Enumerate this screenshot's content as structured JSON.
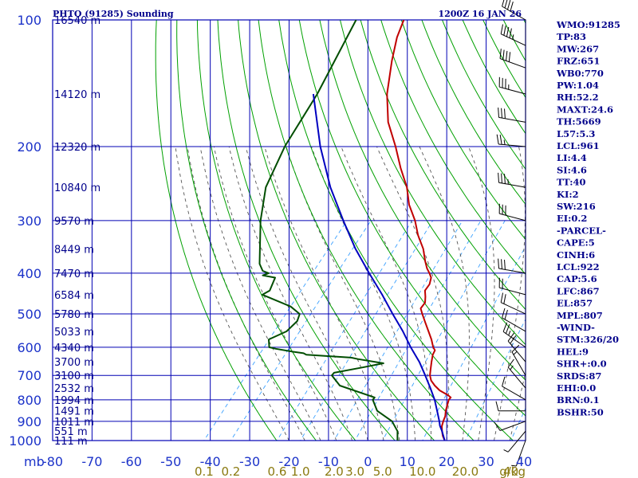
{
  "header": {
    "station": "PHTO (91285) Sounding",
    "time": "1200Z 16 JAN 26"
  },
  "indices": [
    "WMO:91285",
    "TP:83",
    "MW:267",
    "FRZ:651",
    "WB0:770",
    "PW:1.04",
    "RH:52.2",
    "MAXT:24.6",
    "TH:5669",
    "L57:5.3",
    "LCL:961",
    "LI:4.4",
    "SI:4.6",
    "TT:40",
    "KI:2",
    "SW:216",
    "EI:0.2",
    "-PARCEL-",
    "CAPE:5",
    "CINH:6",
    "LCL:922",
    "CAP:5.6",
    "LFC:867",
    "EL:857",
    "MPL:807",
    "-WIND-",
    "STM:326/20",
    "HEL:9",
    "SHR+:0.0",
    "SRDS:87",
    "EHI:0.0",
    "BRN:0.1",
    "BSHR:50"
  ],
  "colors": {
    "grid": "#0000b4",
    "dry_adiabat": "#00a000",
    "moist_adiabat": "#555555",
    "mixing_ratio": "#3aa0ff",
    "temperature": "#c00000",
    "dewpoint": "#004d00",
    "parcel": "#0000c0",
    "text": "#00008b",
    "mixing_label": "#8a7a10"
  },
  "chart_data": {
    "type": "line",
    "y_unit_label": "mb",
    "pressure_levels": [
      100,
      200,
      300,
      400,
      500,
      600,
      700,
      800,
      900,
      1000
    ],
    "pressure_tick_labels": [
      "100",
      "200",
      "300",
      "400",
      "500",
      "600",
      "700",
      "800",
      "900",
      "1000"
    ],
    "temperature_ticks": [
      -80,
      -70,
      -60,
      -50,
      -40,
      -30,
      -20,
      -10,
      0,
      10,
      20,
      30,
      40
    ],
    "temperature_tick_labels": [
      "-80",
      "-70",
      "-60",
      "-50",
      "-40",
      "-30",
      "-20",
      "-10",
      "0",
      "10",
      "20",
      "30",
      "40"
    ],
    "xlim": [
      -80,
      40
    ],
    "ylim": [
      1000,
      100
    ],
    "skew_c_per_decade": 90,
    "heights": [
      {
        "p": 100,
        "label": "16540 m"
      },
      {
        "p": 150,
        "label": "14120 m"
      },
      {
        "p": 200,
        "label": "12320 m"
      },
      {
        "p": 250,
        "label": "10840 m"
      },
      {
        "p": 300,
        "label": "9570 m"
      },
      {
        "p": 350,
        "label": "8449 m"
      },
      {
        "p": 400,
        "label": "7470 m"
      },
      {
        "p": 450,
        "label": "6584 m"
      },
      {
        "p": 500,
        "label": "5780 m"
      },
      {
        "p": 550,
        "label": "5033 m"
      },
      {
        "p": 600,
        "label": "4340 m"
      },
      {
        "p": 650,
        "label": "3700 m"
      },
      {
        "p": 700,
        "label": "3100 m"
      },
      {
        "p": 750,
        "label": "2532 m"
      },
      {
        "p": 800,
        "label": "1994 m"
      },
      {
        "p": 850,
        "label": "1491 m"
      },
      {
        "p": 900,
        "label": "1011 m"
      },
      {
        "p": 950,
        "label": "551 m"
      },
      {
        "p": 1000,
        "label": "111 m"
      }
    ],
    "mixing_ratios": [
      {
        "w": 0.1,
        "label": "0.1"
      },
      {
        "w": 0.2,
        "label": "0.2"
      },
      {
        "w": 0.6,
        "label": "0.6"
      },
      {
        "w": 1.0,
        "label": "1.0"
      },
      {
        "w": 2.0,
        "label": "2.0"
      },
      {
        "w": 3.0,
        "label": "3.0"
      },
      {
        "w": 5.0,
        "label": "5.0"
      },
      {
        "w": 10.0,
        "label": "10.0"
      },
      {
        "w": 20.0,
        "label": "20.0"
      },
      {
        "w": 40.0,
        "label": "40"
      }
    ],
    "mixing_unit_label": "g/kg",
    "series": [
      {
        "key": "temperature",
        "points": [
          [
            1012,
            20.4
          ],
          [
            1000,
            19.5
          ],
          [
            975,
            18.0
          ],
          [
            950,
            16.8
          ],
          [
            925,
            15.7
          ],
          [
            900,
            15.0
          ],
          [
            875,
            14.4
          ],
          [
            850,
            13.4
          ],
          [
            800,
            11.8
          ],
          [
            790,
            11.8
          ],
          [
            780,
            10.6
          ],
          [
            760,
            7.5
          ],
          [
            740,
            5.2
          ],
          [
            720,
            3.2
          ],
          [
            700,
            1.8
          ],
          [
            680,
            0.8
          ],
          [
            650,
            -0.7
          ],
          [
            625,
            -1.9
          ],
          [
            610,
            -2.3
          ],
          [
            600,
            -3.4
          ],
          [
            575,
            -5.5
          ],
          [
            550,
            -8.0
          ],
          [
            525,
            -10.6
          ],
          [
            500,
            -13.3
          ],
          [
            485,
            -14.9
          ],
          [
            470,
            -15.0
          ],
          [
            455,
            -16.2
          ],
          [
            440,
            -17.6
          ],
          [
            425,
            -17.8
          ],
          [
            410,
            -18.8
          ],
          [
            400,
            -20.2
          ],
          [
            390,
            -21.8
          ],
          [
            375,
            -23.8
          ],
          [
            350,
            -27.0
          ],
          [
            325,
            -31.2
          ],
          [
            300,
            -35.1
          ],
          [
            275,
            -40.0
          ],
          [
            250,
            -44.3
          ],
          [
            225,
            -50.0
          ],
          [
            200,
            -55.9
          ],
          [
            175,
            -63.0
          ],
          [
            150,
            -69.3
          ],
          [
            125,
            -75.2
          ],
          [
            110,
            -78.9
          ],
          [
            100,
            -80.9
          ]
        ]
      },
      {
        "key": "dewpoint",
        "points": [
          [
            1012,
            10.0
          ],
          [
            1000,
            7.5
          ],
          [
            950,
            5.5
          ],
          [
            900,
            2.0
          ],
          [
            850,
            -4.0
          ],
          [
            800,
            -7.5
          ],
          [
            790,
            -7.5
          ],
          [
            740,
            -18.9
          ],
          [
            700,
            -23.1
          ],
          [
            690,
            -23.1
          ],
          [
            670,
            -17.0
          ],
          [
            655,
            -12.6
          ],
          [
            640,
            -20.0
          ],
          [
            635,
            -22.0
          ],
          [
            625,
            -34.0
          ],
          [
            620,
            -35.0
          ],
          [
            615,
            -38.0
          ],
          [
            605,
            -43.0
          ],
          [
            600,
            -45.0
          ],
          [
            575,
            -46.8
          ],
          [
            550,
            -44.0
          ],
          [
            520,
            -43.5
          ],
          [
            500,
            -44.4
          ],
          [
            480,
            -48.3
          ],
          [
            450,
            -58.0
          ],
          [
            440,
            -57.0
          ],
          [
            410,
            -58.4
          ],
          [
            405,
            -62.0
          ],
          [
            400,
            -61.0
          ],
          [
            395,
            -63.0
          ],
          [
            380,
            -65.3
          ],
          [
            300,
            -74.3
          ],
          [
            250,
            -80.1
          ],
          [
            200,
            -84.0
          ],
          [
            150,
            -87.0
          ],
          [
            100,
            -93.0
          ]
        ]
      },
      {
        "key": "parcel",
        "points": [
          [
            1012,
            20.4
          ],
          [
            1000,
            19.5
          ],
          [
            961,
            17.4
          ],
          [
            950,
            16.8
          ],
          [
            922,
            15.1
          ],
          [
            900,
            14.0
          ],
          [
            850,
            11.2
          ],
          [
            800,
            8.2
          ],
          [
            750,
            4.6
          ],
          [
            700,
            0.6
          ],
          [
            650,
            -3.8
          ],
          [
            600,
            -9.1
          ],
          [
            550,
            -14.5
          ],
          [
            500,
            -20.8
          ],
          [
            450,
            -27.6
          ],
          [
            400,
            -35.5
          ],
          [
            350,
            -44.2
          ],
          [
            300,
            -53.3
          ],
          [
            250,
            -63.7
          ],
          [
            200,
            -75.0
          ],
          [
            150,
            -88.0
          ]
        ]
      }
    ],
    "winds": [
      {
        "p": 100,
        "dir": 300,
        "spd": 40
      },
      {
        "p": 115,
        "dir": 295,
        "spd": 45
      },
      {
        "p": 130,
        "dir": 290,
        "spd": 40
      },
      {
        "p": 150,
        "dir": 285,
        "spd": 35
      },
      {
        "p": 175,
        "dir": 280,
        "spd": 30
      },
      {
        "p": 200,
        "dir": 275,
        "spd": 25
      },
      {
        "p": 250,
        "dir": 280,
        "spd": 35
      },
      {
        "p": 300,
        "dir": 285,
        "spd": 30
      },
      {
        "p": 400,
        "dir": 280,
        "spd": 30
      },
      {
        "p": 450,
        "dir": 285,
        "spd": 20
      },
      {
        "p": 500,
        "dir": 295,
        "spd": 20
      },
      {
        "p": 550,
        "dir": 300,
        "spd": 20
      },
      {
        "p": 600,
        "dir": 305,
        "spd": 25
      },
      {
        "p": 650,
        "dir": 320,
        "spd": 20
      },
      {
        "p": 700,
        "dir": 330,
        "spd": 15
      },
      {
        "p": 750,
        "dir": 320,
        "spd": 15
      },
      {
        "p": 800,
        "dir": 300,
        "spd": 10
      },
      {
        "p": 850,
        "dir": 270,
        "spd": 10
      },
      {
        "p": 900,
        "dir": 250,
        "spd": 10
      },
      {
        "p": 950,
        "dir": 220,
        "spd": 5
      },
      {
        "p": 1000,
        "dir": 200,
        "spd": 5
      }
    ]
  }
}
